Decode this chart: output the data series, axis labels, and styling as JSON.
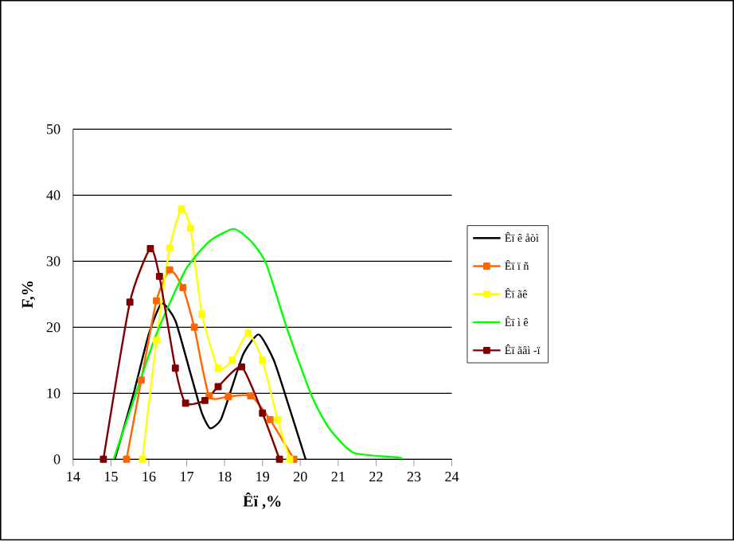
{
  "chart_data": {
    "type": "line",
    "xlabel": "Êï ,%",
    "ylabel": "F,%",
    "xlim": [
      14,
      24
    ],
    "ylim": [
      0,
      50
    ],
    "xticks": [
      14,
      15,
      16,
      17,
      18,
      19,
      20,
      21,
      22,
      23,
      24
    ],
    "yticks": [
      0,
      10,
      20,
      30,
      40,
      50
    ],
    "grid": "y",
    "legend": "right",
    "series": [
      {
        "name": "Êï ê åòì",
        "color": "#000000",
        "marker": "none",
        "x": [
          15.1,
          15.6,
          16.0,
          16.34,
          16.7,
          17.1,
          17.4,
          17.62,
          17.9,
          18.2,
          18.5,
          18.9,
          19.3,
          19.7,
          20.14
        ],
        "values": [
          0,
          10,
          19,
          23.6,
          21,
          13,
          7,
          4.7,
          6,
          11,
          16,
          18.9,
          15,
          8,
          0
        ]
      },
      {
        "name": "Êï ï ñ",
        "color": "#ff6600",
        "marker": "square",
        "x": [
          15.41,
          15.8,
          16.2,
          16.55,
          16.9,
          17.2,
          17.59,
          18.1,
          18.69,
          19.2,
          19.83
        ],
        "values": [
          0,
          12,
          24,
          28.7,
          26,
          20,
          9.6,
          9.5,
          9.6,
          6,
          0
        ]
      },
      {
        "name": "Êï ãê",
        "color": "#ffff00",
        "marker": "square",
        "x": [
          15.83,
          16.2,
          16.55,
          16.86,
          17.1,
          17.4,
          17.83,
          18.2,
          18.62,
          19.0,
          19.4,
          19.72
        ],
        "values": [
          0,
          18,
          32,
          37.9,
          35,
          22,
          13.8,
          15,
          19.1,
          15,
          6,
          0
        ]
      },
      {
        "name": "Êï ì ê",
        "color": "#00ff00",
        "marker": "none",
        "x": [
          15.07,
          15.6,
          16.2,
          16.97,
          17.6,
          18.24,
          18.7,
          19.1,
          19.66,
          20.3,
          20.76,
          21.4,
          22.55,
          22.7
        ],
        "values": [
          0,
          9,
          19,
          28.7,
          33,
          34.9,
          33,
          29.6,
          19.6,
          9.6,
          4.7,
          1,
          0.3,
          0
        ]
      },
      {
        "name": "Êï ãâì -ï",
        "color": "#800000",
        "marker": "square",
        "x": [
          14.8,
          15.5,
          16.04,
          16.28,
          16.7,
          16.97,
          17.48,
          17.83,
          18.45,
          19.0,
          19.45
        ],
        "values": [
          0,
          23.8,
          31.9,
          27.7,
          13.8,
          8.5,
          8.9,
          11,
          14,
          7,
          0
        ]
      }
    ]
  }
}
